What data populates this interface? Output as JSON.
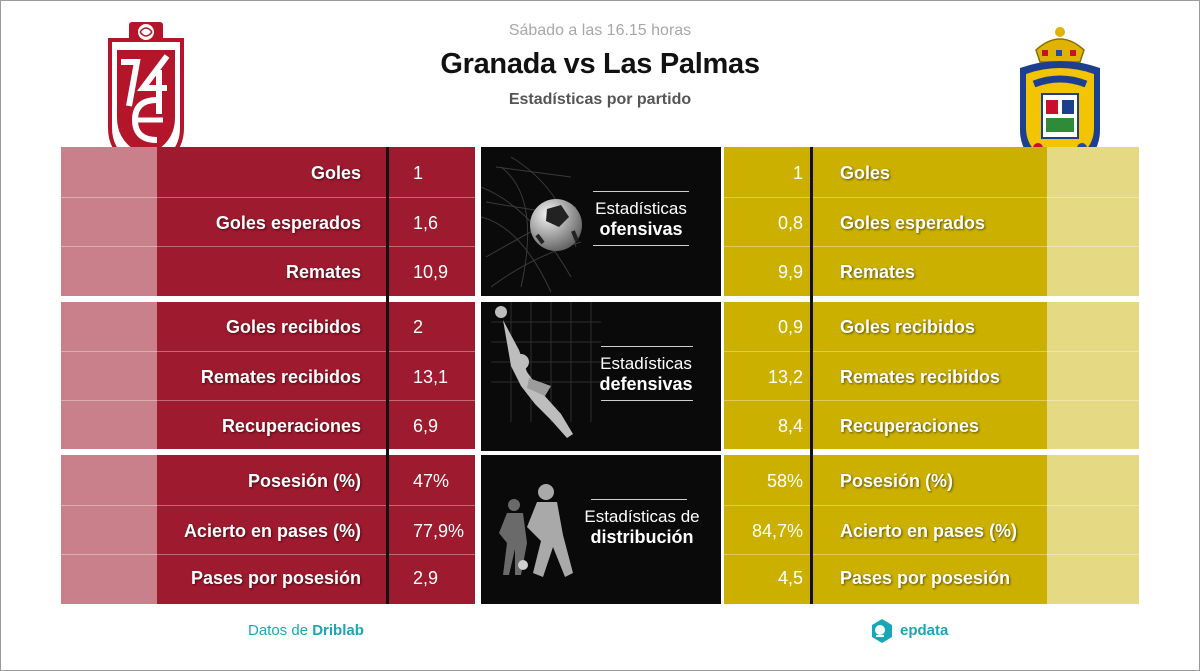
{
  "header": {
    "kickoff": "Sábado a las 16.15 horas",
    "title": "Granada vs Las Palmas",
    "subtitle": "Estadísticas por partido"
  },
  "teams": {
    "home": {
      "name": "Granada",
      "color": "#9e1a2e",
      "pale_color": "#c9808a",
      "crest_text": "GCF"
    },
    "away": {
      "name": "Las Palmas",
      "color": "#ccb000",
      "pale_color": "#e5d984",
      "crest_text": "LAS PALMAS"
    }
  },
  "sections": [
    {
      "title_line1": "Estadísticas",
      "title_line2": "ofensivas",
      "icon": "ball-in-net-icon",
      "stats": [
        {
          "label": "Goles",
          "home": "1",
          "away": "1"
        },
        {
          "label": "Goles esperados",
          "home": "1,6",
          "away": "0,8"
        },
        {
          "label": "Remates",
          "home": "10,9",
          "away": "9,9"
        }
      ]
    },
    {
      "title_line1": "Estadísticas",
      "title_line2": "defensivas",
      "icon": "goalkeeper-dive-icon",
      "stats": [
        {
          "label": "Goles recibidos",
          "home": "2",
          "away": "0,9"
        },
        {
          "label": "Remates recibidos",
          "home": "13,1",
          "away": "13,2"
        },
        {
          "label": "Recuperaciones",
          "home": "6,9",
          "away": "8,4"
        }
      ]
    },
    {
      "title_line1": "Estadísticas de",
      "title_line2": "distribución",
      "icon": "players-passing-icon",
      "stats": [
        {
          "label": "Posesión (%)",
          "home": "47%",
          "away": "58%"
        },
        {
          "label": "Acierto en pases (%)",
          "home": "77,9%",
          "away": "84,7%"
        },
        {
          "label": "Pases por posesión",
          "home": "2,9",
          "away": "4,5"
        }
      ]
    }
  ],
  "footer": {
    "source_prefix": "Datos de",
    "source_name": "Driblab",
    "brand": "epdata",
    "brand_color": "#1aa7b5"
  }
}
